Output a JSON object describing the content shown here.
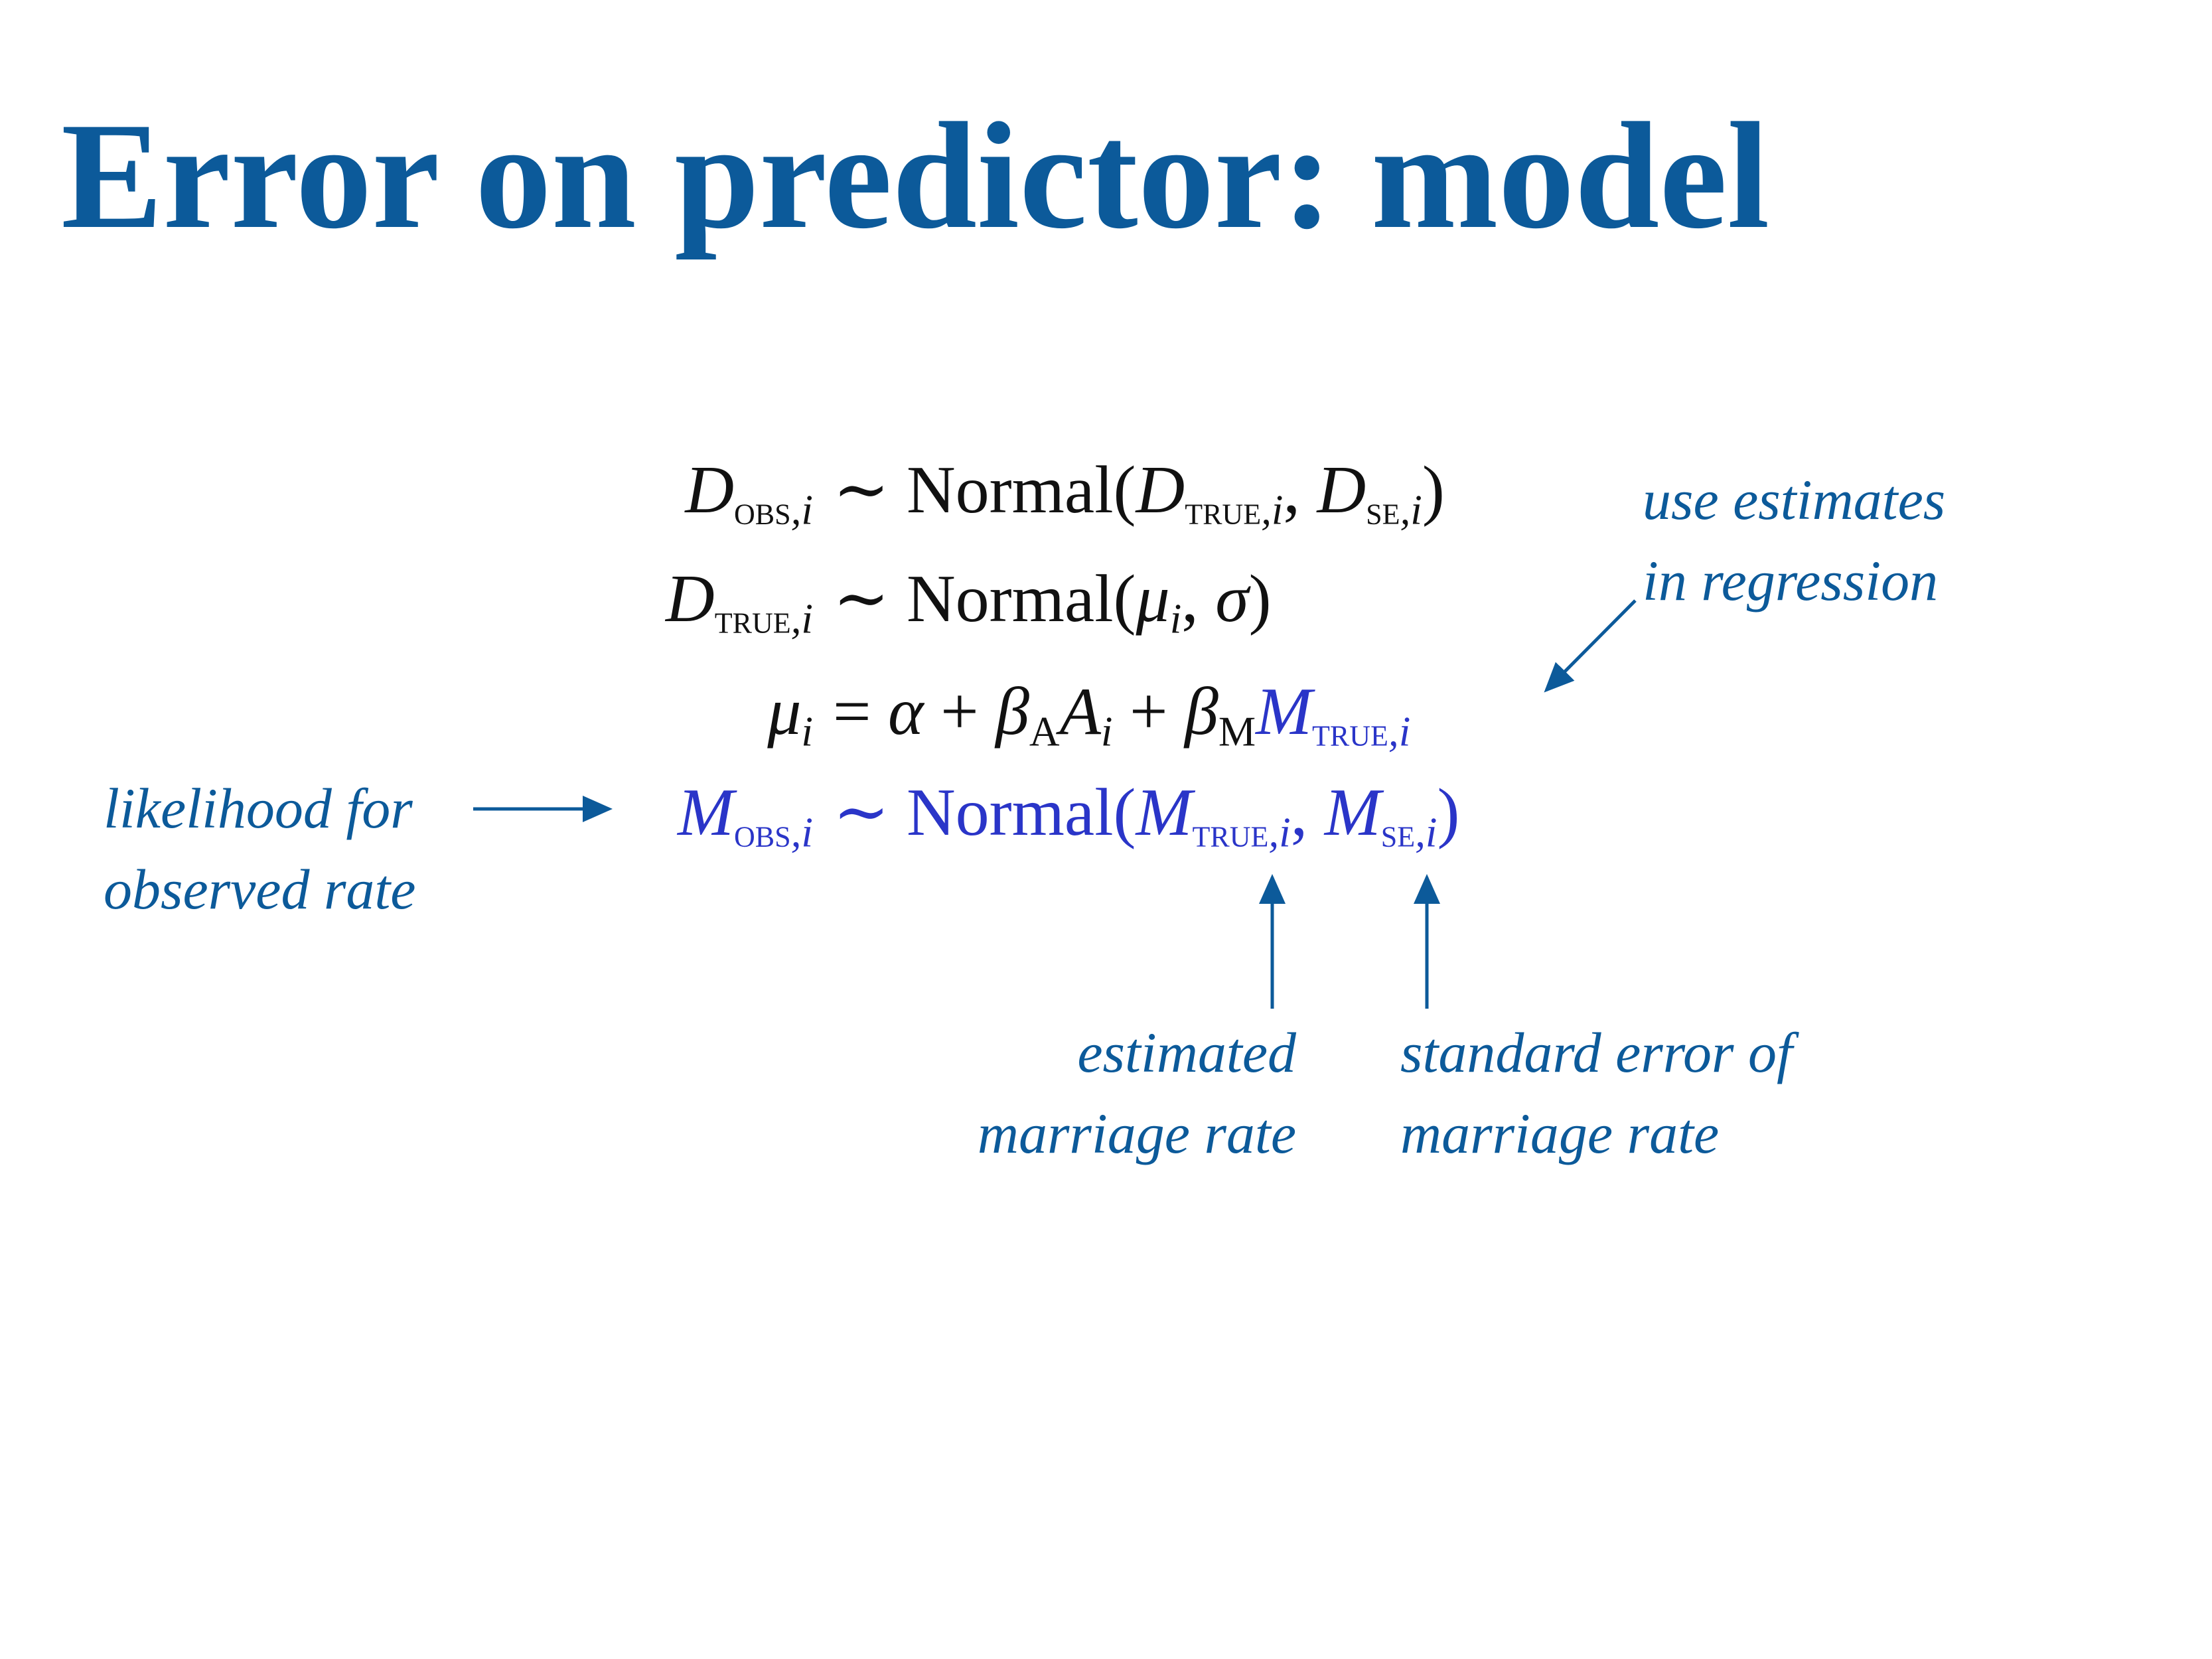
{
  "slide": {
    "title": "Error on predictor: model"
  },
  "equations": {
    "eq1": {
      "lhs": {
        "base": "D",
        "sub_sc": "obs",
        "sub_i": ",i"
      },
      "rel": "∼",
      "fn": "Normal",
      "open": "(",
      "arg1": {
        "base": "D",
        "sub_sc": "true",
        "sub_i": ",i"
      },
      "comma": ", ",
      "arg2": {
        "base": "D",
        "sub_sc": "se",
        "sub_i": ",i"
      },
      "close": ")"
    },
    "eq2": {
      "lhs": {
        "base": "D",
        "sub_sc": "true",
        "sub_i": ",i"
      },
      "rel": "∼",
      "fn": "Normal",
      "open": "(",
      "arg1": {
        "base": "μ",
        "sub_i": "i"
      },
      "comma": ", ",
      "arg2": "σ",
      "close": ")"
    },
    "eq3": {
      "lhs": {
        "base": "μ",
        "sub_i": "i"
      },
      "rel": "=",
      "alpha": "α",
      "plus": "+",
      "betaA": {
        "base": "β",
        "sub": "A"
      },
      "A": {
        "base": "A",
        "sub_i": "i"
      },
      "betaM": {
        "base": "β",
        "sub": "M"
      },
      "M": {
        "base": "M",
        "sub_sc": "true",
        "sub_i": ",i"
      }
    },
    "eq4": {
      "lhs": {
        "base": "M",
        "sub_sc": "obs",
        "sub_i": ",i"
      },
      "rel": "∼",
      "fn": "Normal",
      "open": "(",
      "arg1": {
        "base": "M",
        "sub_sc": "true",
        "sub_i": ",i"
      },
      "comma": ", ",
      "arg2": {
        "base": "M",
        "sub_sc": "se",
        "sub_i": ",i"
      },
      "close": ")"
    }
  },
  "annotations": {
    "use_estimates": {
      "line1": "use estimates",
      "line2": "in regression"
    },
    "likelihood": {
      "line1": "likelihood for",
      "line2": "observed rate"
    },
    "estimated": {
      "line1": "estimated",
      "line2": "marriage rate"
    },
    "standard_error": {
      "line1": "standard error of",
      "line2": "marriage rate"
    }
  },
  "colors": {
    "title": "#0c5a9a",
    "annotation": "#0c5a9a",
    "highlight_math": "#2a35c8",
    "math": "#111111",
    "background": "#ffffff"
  }
}
